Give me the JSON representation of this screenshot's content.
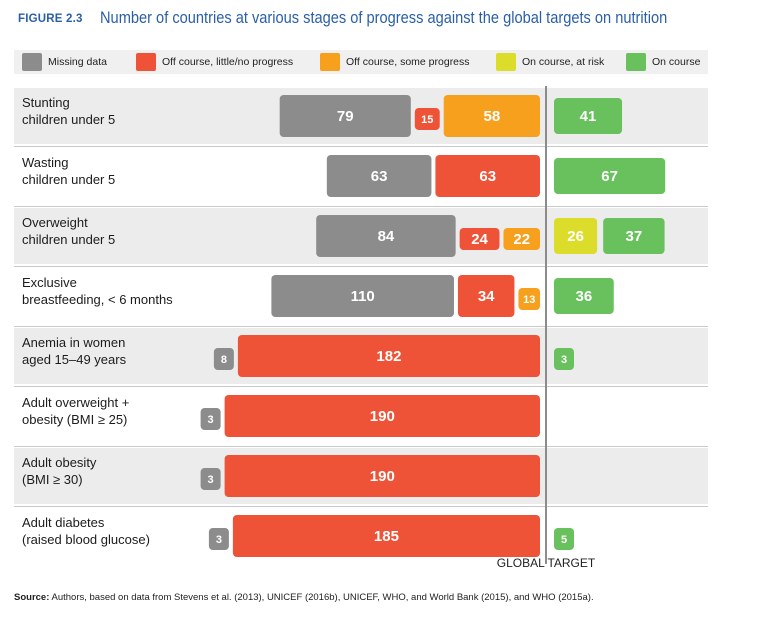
{
  "figure": {
    "label": "FIGURE 2.3",
    "title": "Number of countries at various stages of progress against the global targets on nutrition"
  },
  "legend": [
    {
      "key": "missing",
      "label": "Missing data",
      "color": "#8c8c8c"
    },
    {
      "key": "off_little",
      "label": "Off course, little/no progress",
      "color": "#ef5337"
    },
    {
      "key": "off_some",
      "label": "Off course, some progress",
      "color": "#f7a01d"
    },
    {
      "key": "on_risk",
      "label": "On course, at risk",
      "color": "#dcdc2a"
    },
    {
      "key": "on",
      "label": "On course",
      "color": "#69c15d"
    }
  ],
  "chart_data": {
    "type": "bar",
    "title": "Number of countries at various stages of progress against the global targets on nutrition",
    "orientation": "horizontal-stacked",
    "categories": [
      [
        "Stunting",
        "children under 5"
      ],
      [
        "Wasting",
        "children under 5"
      ],
      [
        "Overweight",
        "children under 5"
      ],
      [
        "Exclusive",
        "breastfeeding, < 6 months"
      ],
      [
        "Anemia in women",
        "aged 15–49 years"
      ],
      [
        "Adult overweight +",
        "obesity (BMI ≥ 25)"
      ],
      [
        "Adult obesity",
        "(BMI ≥ 30)"
      ],
      [
        "Adult diabetes",
        "(raised blood glucose)"
      ]
    ],
    "series": [
      {
        "name": "Missing data",
        "key": "missing",
        "values": [
          79,
          63,
          84,
          110,
          8,
          3,
          3,
          3
        ]
      },
      {
        "name": "Off course, little/no progress",
        "key": "off_little",
        "values": [
          15,
          63,
          24,
          34,
          182,
          190,
          190,
          185
        ]
      },
      {
        "name": "Off course, some progress",
        "key": "off_some",
        "values": [
          58,
          0,
          22,
          13,
          0,
          0,
          0,
          0
        ]
      },
      {
        "name": "On course, at risk",
        "key": "on_risk",
        "values": [
          0,
          0,
          26,
          0,
          0,
          0,
          0,
          0
        ]
      },
      {
        "name": "On course",
        "key": "on",
        "values": [
          41,
          67,
          37,
          36,
          3,
          0,
          0,
          5
        ]
      }
    ],
    "target_label": "GLOBAL TARGET"
  },
  "source": {
    "prefix": "Source:",
    "text": " Authors, based on data from Stevens et al. (2013), UNICEF (2016b), UNICEF, WHO, and World Bank (2015), and WHO (2015a)."
  }
}
